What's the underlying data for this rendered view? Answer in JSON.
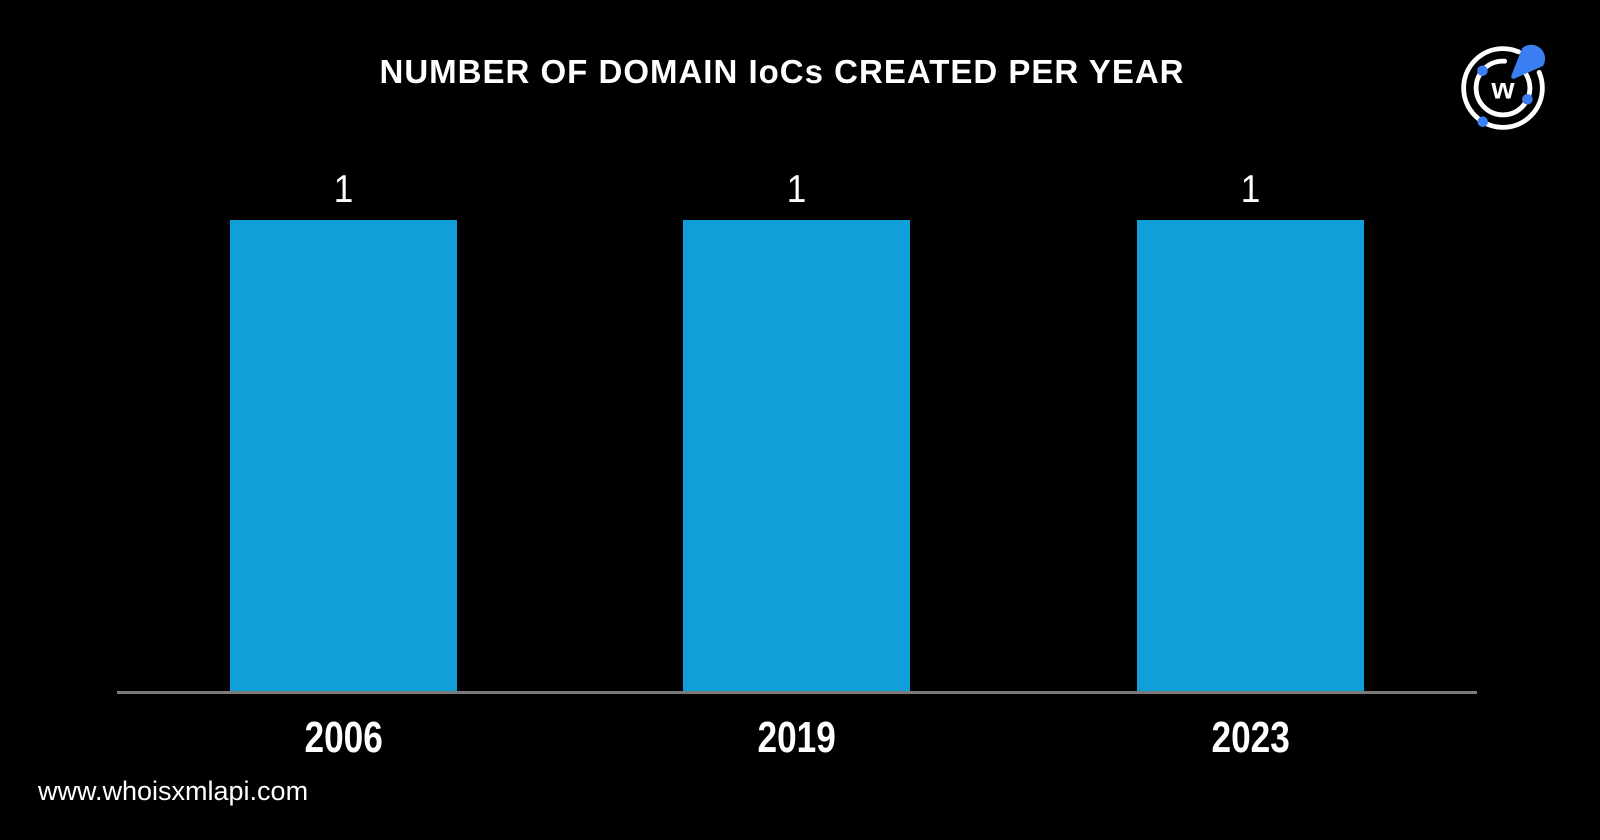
{
  "title": "NUMBER OF DOMAIN IoCs CREATED PER YEAR",
  "footer": {
    "website": "www.whoisxmlapi.com"
  },
  "logo": {
    "name": "whoisxmlapi-logo",
    "letter": "w"
  },
  "colors": {
    "background": "#000000",
    "bar": "#129fd9",
    "axis": "#7a7a7a",
    "text": "#ffffff",
    "logo_blue": "#3b7ff2"
  },
  "chart_data": {
    "type": "bar",
    "title": "NUMBER OF DOMAIN IoCs CREATED PER YEAR",
    "categories": [
      "2006",
      "2019",
      "2023"
    ],
    "values": [
      1,
      1,
      1
    ],
    "data_labels": [
      "1",
      "1",
      "1"
    ],
    "xlabel": "",
    "ylabel": "",
    "ylim": [
      0,
      1
    ],
    "grid": false,
    "legend": false,
    "bar_color": "#129fd9",
    "background_color": "#000000"
  }
}
